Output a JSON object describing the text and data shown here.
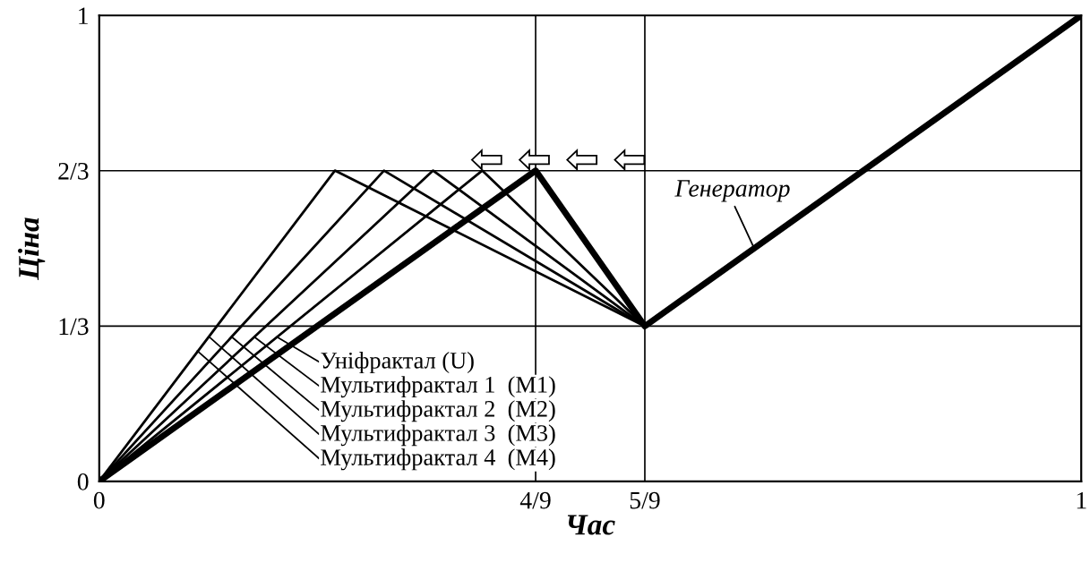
{
  "chart_data": {
    "type": "line",
    "xlabel": "Час",
    "ylabel": "Ціна",
    "series": [
      {
        "color": "#000000",
        "x": [
          0,
          0.4444,
          0.5556,
          1
        ],
        "values": [
          0,
          0.667,
          0.333,
          1
        ]
      },
      {
        "color": "#000000",
        "x": [
          0,
          0.39,
          0.5556
        ],
        "values": [
          0,
          0.667,
          0.333
        ]
      },
      {
        "color": "#000000",
        "x": [
          0,
          0.34,
          0.5556
        ],
        "values": [
          0,
          0.667,
          0.333
        ]
      },
      {
        "color": "#000000",
        "x": [
          0,
          0.29,
          0.5556
        ],
        "values": [
          0,
          0.667,
          0.333
        ]
      },
      {
        "color": "#000000",
        "x": [
          0,
          0.24,
          0.5556
        ],
        "values": [
          0,
          0.667,
          0.333
        ]
      }
    ],
    "xlim": [
      0,
      1
    ],
    "ylim": [
      0,
      1
    ],
    "xticks": [
      0,
      {
        "value": 0.4444,
        "label": "4/9"
      },
      {
        "value": 0.5556,
        "label": "5/9"
      },
      1
    ],
    "yticks": [
      0,
      {
        "value": 0.3333,
        "label": "1/3"
      },
      {
        "value": 0.6667,
        "label": "2/3"
      },
      1
    ],
    "grid": true,
    "marker": "none",
    "line_style": "solid",
    "annotations": [
      {
        "text": "Генератор",
        "x": 0.667,
        "y": 0.5
      },
      {
        "text": "Уніфрактал (U)",
        "x": 0.181,
        "y": 0.31
      },
      {
        "text": "Мультифрактал 1  (M1)",
        "x": 0.158,
        "y": 0.31
      },
      {
        "text": "Мультифрактал 2  (M2)",
        "x": 0.135,
        "y": 0.31
      },
      {
        "text": "Мультифрактал 3  (M3)",
        "x": 0.112,
        "y": 0.31
      },
      {
        "text": "Мультифрактал 4  (M4)",
        "x": 0.1,
        "y": 0.28
      }
    ]
  }
}
